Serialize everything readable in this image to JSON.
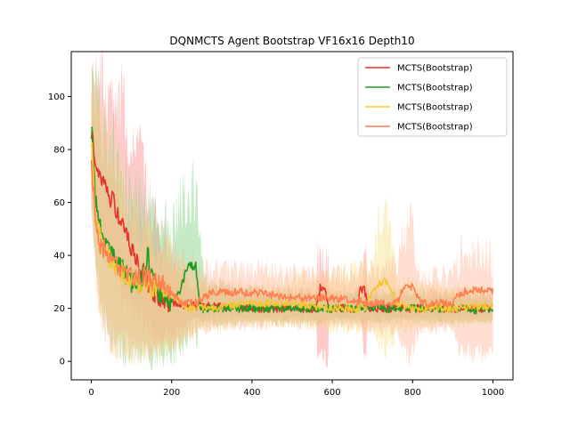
{
  "chart_data": {
    "type": "line",
    "title": "DQNMCTS Agent Bootstrap VF16x16 Depth10",
    "xlabel": "",
    "ylabel": "",
    "xlim": [
      -50,
      1050
    ],
    "ylim": [
      -7,
      117
    ],
    "xticks": [
      0,
      200,
      400,
      600,
      800,
      1000
    ],
    "yticks": [
      0,
      20,
      40,
      60,
      80,
      100
    ],
    "grid": false,
    "legend_position": "top-right",
    "series": [
      {
        "name": "MCTS(Bootstrap)",
        "color": "#e8312b",
        "band_color": "#ff8a8a",
        "mean": [
          [
            0,
            88
          ],
          [
            10,
            74
          ],
          [
            20,
            70
          ],
          [
            40,
            64
          ],
          [
            60,
            58
          ],
          [
            80,
            52
          ],
          [
            100,
            42
          ],
          [
            120,
            36
          ],
          [
            140,
            30
          ],
          [
            160,
            25
          ],
          [
            180,
            23
          ],
          [
            200,
            22
          ],
          [
            250,
            21
          ],
          [
            300,
            21
          ],
          [
            400,
            20
          ],
          [
            500,
            20
          ],
          [
            560,
            20
          ],
          [
            570,
            28
          ],
          [
            580,
            28
          ],
          [
            590,
            20
          ],
          [
            660,
            20
          ],
          [
            670,
            27
          ],
          [
            680,
            27
          ],
          [
            690,
            20
          ],
          [
            800,
            20
          ],
          [
            900,
            20
          ],
          [
            1000,
            20
          ]
        ],
        "band": [
          [
            0,
            60,
            108
          ],
          [
            20,
            45,
            104
          ],
          [
            50,
            35,
            100
          ],
          [
            80,
            25,
            96
          ],
          [
            100,
            20,
            85
          ],
          [
            130,
            15,
            70
          ],
          [
            160,
            10,
            55
          ],
          [
            200,
            10,
            40
          ],
          [
            250,
            16,
            28
          ],
          [
            560,
            16,
            26
          ],
          [
            562,
            2,
            38
          ],
          [
            590,
            2,
            38
          ],
          [
            592,
            16,
            26
          ],
          [
            675,
            16,
            26
          ],
          [
            677,
            3,
            37
          ],
          [
            685,
            3,
            37
          ],
          [
            687,
            16,
            26
          ],
          [
            1000,
            16,
            26
          ]
        ]
      },
      {
        "name": "MCTS(Bootstrap)",
        "color": "#1f9c1f",
        "band_color": "#7fd07f",
        "mean": [
          [
            0,
            92
          ],
          [
            10,
            60
          ],
          [
            20,
            52
          ],
          [
            40,
            44
          ],
          [
            60,
            38
          ],
          [
            80,
            34
          ],
          [
            100,
            30
          ],
          [
            120,
            28
          ],
          [
            140,
            40
          ],
          [
            160,
            28
          ],
          [
            180,
            23
          ],
          [
            200,
            23
          ],
          [
            220,
            26
          ],
          [
            240,
            36
          ],
          [
            260,
            36
          ],
          [
            270,
            20
          ],
          [
            300,
            20
          ],
          [
            400,
            20
          ],
          [
            500,
            20
          ],
          [
            600,
            20
          ],
          [
            700,
            20
          ],
          [
            800,
            20
          ],
          [
            900,
            20
          ],
          [
            1000,
            19
          ]
        ],
        "band": [
          [
            0,
            55,
            105
          ],
          [
            20,
            25,
            95
          ],
          [
            50,
            10,
            80
          ],
          [
            80,
            5,
            70
          ],
          [
            110,
            3,
            60
          ],
          [
            150,
            2,
            55
          ],
          [
            200,
            2,
            50
          ],
          [
            240,
            8,
            65
          ],
          [
            260,
            10,
            65
          ],
          [
            280,
            14,
            30
          ],
          [
            400,
            15,
            26
          ],
          [
            700,
            15,
            26
          ],
          [
            1000,
            15,
            25
          ]
        ]
      },
      {
        "name": "MCTS(Bootstrap)",
        "color": "#f2c830",
        "band_color": "#f7dd80",
        "mean": [
          [
            0,
            85
          ],
          [
            10,
            55
          ],
          [
            20,
            48
          ],
          [
            40,
            40
          ],
          [
            60,
            36
          ],
          [
            80,
            33
          ],
          [
            100,
            30
          ],
          [
            120,
            29
          ],
          [
            140,
            28
          ],
          [
            160,
            27
          ],
          [
            180,
            28
          ],
          [
            200,
            25
          ],
          [
            240,
            20
          ],
          [
            300,
            20
          ],
          [
            400,
            22
          ],
          [
            500,
            22
          ],
          [
            600,
            20
          ],
          [
            680,
            20
          ],
          [
            700,
            26
          ],
          [
            720,
            30
          ],
          [
            740,
            30
          ],
          [
            760,
            22
          ],
          [
            800,
            20
          ],
          [
            900,
            20
          ],
          [
            1000,
            21
          ]
        ],
        "band": [
          [
            0,
            60,
            100
          ],
          [
            20,
            20,
            92
          ],
          [
            50,
            8,
            75
          ],
          [
            80,
            4,
            65
          ],
          [
            110,
            3,
            55
          ],
          [
            150,
            3,
            45
          ],
          [
            200,
            5,
            40
          ],
          [
            260,
            12,
            30
          ],
          [
            400,
            14,
            28
          ],
          [
            700,
            12,
            35
          ],
          [
            720,
            5,
            55
          ],
          [
            740,
            5,
            55
          ],
          [
            760,
            12,
            30
          ],
          [
            1000,
            15,
            26
          ]
        ]
      },
      {
        "name": "MCTS(Bootstrap)",
        "color": "#ff7f50",
        "band_color": "#ffb89a",
        "mean": [
          [
            0,
            80
          ],
          [
            10,
            50
          ],
          [
            20,
            45
          ],
          [
            40,
            40
          ],
          [
            60,
            36
          ],
          [
            80,
            34
          ],
          [
            100,
            33
          ],
          [
            120,
            32
          ],
          [
            140,
            32
          ],
          [
            160,
            30
          ],
          [
            180,
            29
          ],
          [
            200,
            26
          ],
          [
            220,
            22
          ],
          [
            260,
            22
          ],
          [
            300,
            26
          ],
          [
            400,
            26
          ],
          [
            500,
            24
          ],
          [
            600,
            24
          ],
          [
            700,
            22
          ],
          [
            760,
            22
          ],
          [
            780,
            28
          ],
          [
            800,
            28
          ],
          [
            820,
            22
          ],
          [
            900,
            22
          ],
          [
            920,
            26
          ],
          [
            960,
            27
          ],
          [
            1000,
            27
          ]
        ],
        "band": [
          [
            0,
            55,
            100
          ],
          [
            20,
            20,
            90
          ],
          [
            50,
            8,
            70
          ],
          [
            80,
            5,
            60
          ],
          [
            110,
            4,
            50
          ],
          [
            150,
            4,
            45
          ],
          [
            200,
            6,
            40
          ],
          [
            260,
            12,
            35
          ],
          [
            400,
            14,
            34
          ],
          [
            600,
            14,
            32
          ],
          [
            760,
            12,
            35
          ],
          [
            780,
            4,
            50
          ],
          [
            800,
            4,
            50
          ],
          [
            820,
            12,
            32
          ],
          [
            900,
            12,
            32
          ],
          [
            920,
            3,
            40
          ],
          [
            1000,
            3,
            40
          ]
        ]
      }
    ]
  }
}
